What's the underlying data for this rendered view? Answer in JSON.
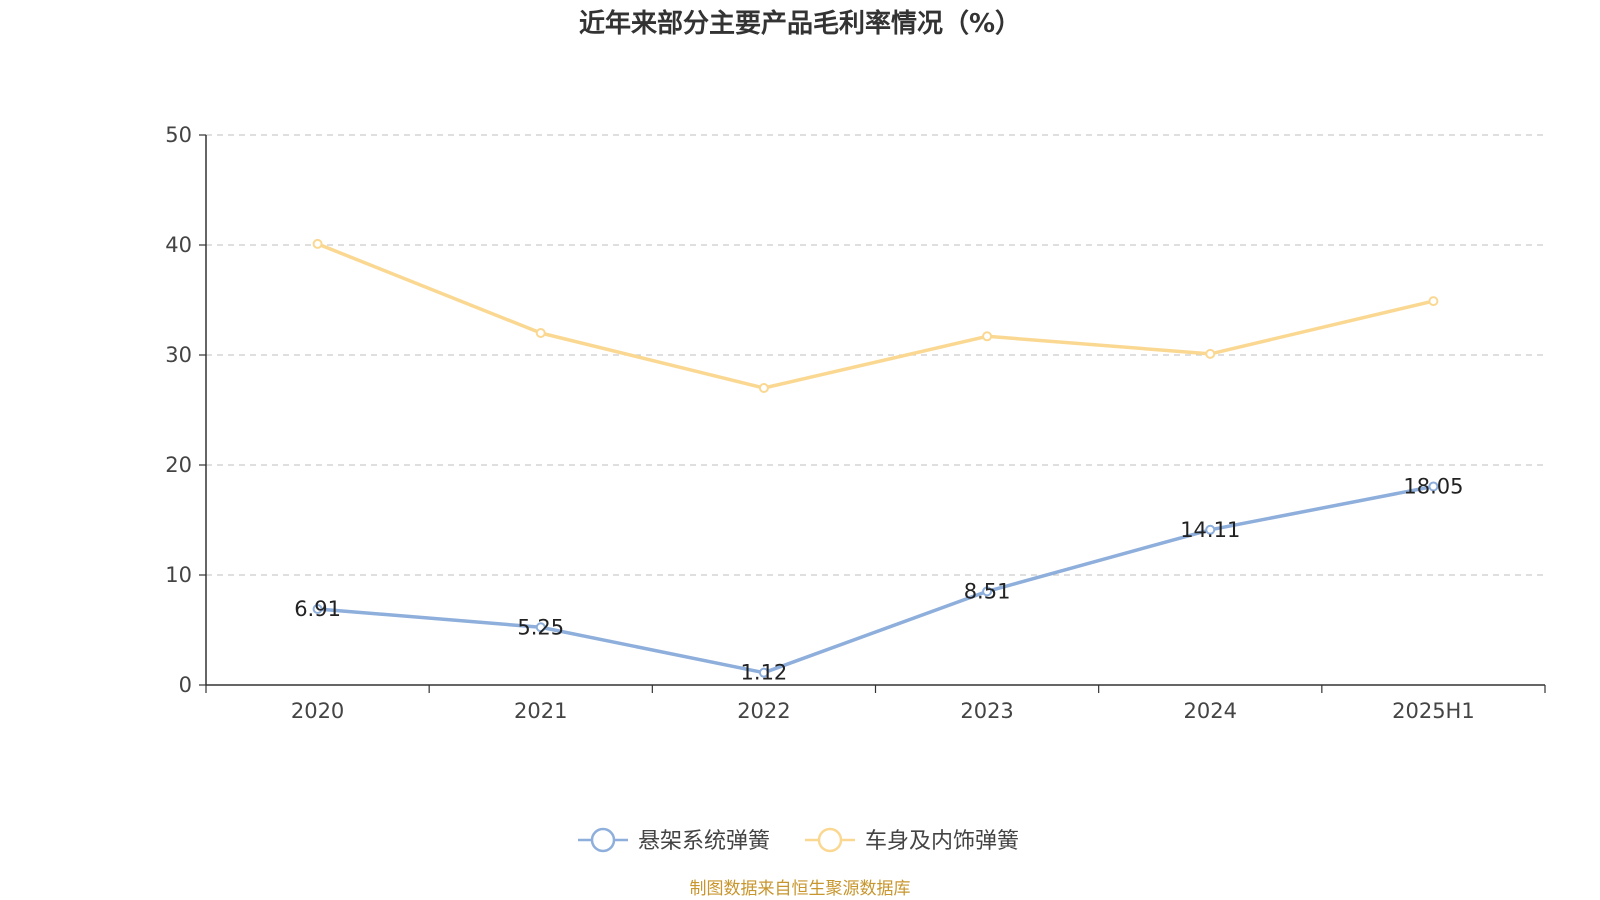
{
  "chart_data": {
    "type": "line",
    "title": "近年来部分主要产品毛利率情况（%）",
    "categories": [
      "2020",
      "2021",
      "2022",
      "2023",
      "2024",
      "2025H1"
    ],
    "ylim": [
      0,
      50
    ],
    "yticks": [
      0,
      10,
      20,
      30,
      40,
      50
    ],
    "grid": true,
    "legend_position": "bottom",
    "series": [
      {
        "name": "悬架系统弹簧",
        "values": [
          6.91,
          5.25,
          1.12,
          8.51,
          14.11,
          18.05
        ],
        "labels": [
          "6.91",
          "5.25",
          "1.12",
          "8.51",
          "14.11",
          "18.05"
        ],
        "color": "#8eaedb",
        "show_labels": true
      },
      {
        "name": "车身及内饰弹簧",
        "values": [
          40.1,
          32.0,
          27.0,
          31.7,
          30.1,
          34.9
        ],
        "color": "#fad892",
        "show_labels": false
      }
    ]
  },
  "source_text": "制图数据来自恒生聚源数据库"
}
